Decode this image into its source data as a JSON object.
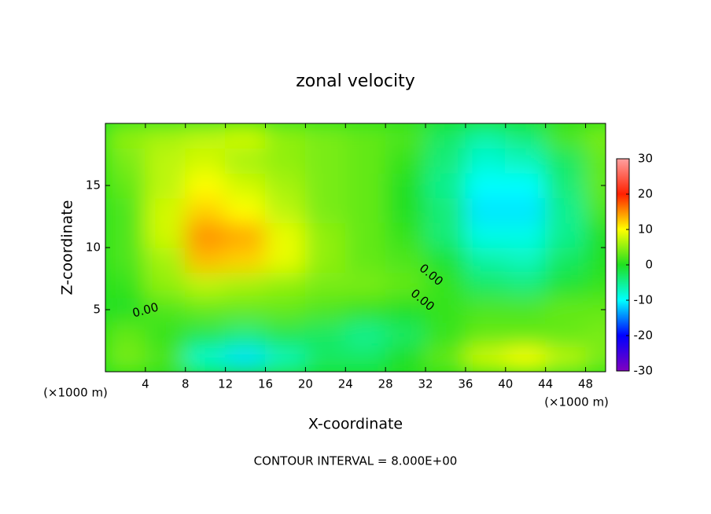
{
  "chart_data": {
    "type": "contour",
    "title": "zonal velocity",
    "x_label": "X-coordinate",
    "y_label": "Z-coordinate",
    "x_unit": "(×1000 m)",
    "y_unit": "(×1000 m)",
    "footer": "CONTOUR INTERVAL = 8.000E+00",
    "contour_labels": [
      "0.00",
      "0.00",
      "0.00"
    ],
    "x": [
      2,
      6,
      10,
      14,
      18,
      22,
      26,
      30,
      34,
      38,
      42,
      46,
      50
    ],
    "y": [
      1,
      3,
      5,
      7,
      9,
      11,
      13,
      15,
      17,
      19
    ],
    "z": [
      [
        4,
        2,
        -8,
        -11,
        -7,
        -3,
        -3,
        0,
        3,
        8,
        10,
        7,
        4
      ],
      [
        3,
        1,
        -2,
        -4,
        -2,
        -3,
        -5,
        -3,
        1,
        3,
        3,
        3,
        4
      ],
      [
        0,
        2,
        3,
        3,
        3,
        2,
        1,
        0,
        1,
        2,
        2,
        3,
        3
      ],
      [
        1,
        5,
        7,
        6,
        5,
        4,
        4,
        3,
        1,
        -3,
        -4,
        -1,
        1
      ],
      [
        2,
        6,
        13,
        12,
        9,
        5,
        3,
        2,
        -1,
        -6,
        -7,
        -3,
        0
      ],
      [
        2,
        8,
        15,
        14,
        9,
        5,
        3,
        1,
        -4,
        -9,
        -9,
        -5,
        0
      ],
      [
        2,
        8,
        12,
        10,
        7,
        4,
        3,
        0,
        -4,
        -11,
        -11,
        -5,
        2
      ],
      [
        3,
        7,
        10,
        8,
        6,
        4,
        3,
        0,
        -5,
        -10,
        -10,
        -4,
        3
      ],
      [
        4,
        7,
        8,
        6,
        5,
        4,
        3,
        1,
        -4,
        -8,
        -7,
        -3,
        3
      ],
      [
        5,
        6,
        7,
        8,
        5,
        4,
        3,
        2,
        -3,
        -6,
        -4,
        2,
        4
      ]
    ],
    "xlim": [
      0,
      50
    ],
    "ylim": [
      0,
      20
    ],
    "xticks": [
      4,
      8,
      12,
      16,
      20,
      24,
      28,
      32,
      36,
      40,
      44,
      48
    ],
    "yticks": [
      5,
      10,
      15
    ],
    "clim": [
      -30,
      30
    ],
    "cticks": [
      -30,
      -20,
      -10,
      0,
      10,
      20,
      30
    ],
    "colormap": [
      "#8000c0",
      "#0000ff",
      "#00ffff",
      "#20e020",
      "#ffff00",
      "#ff2000",
      "#ffa0a0"
    ]
  }
}
